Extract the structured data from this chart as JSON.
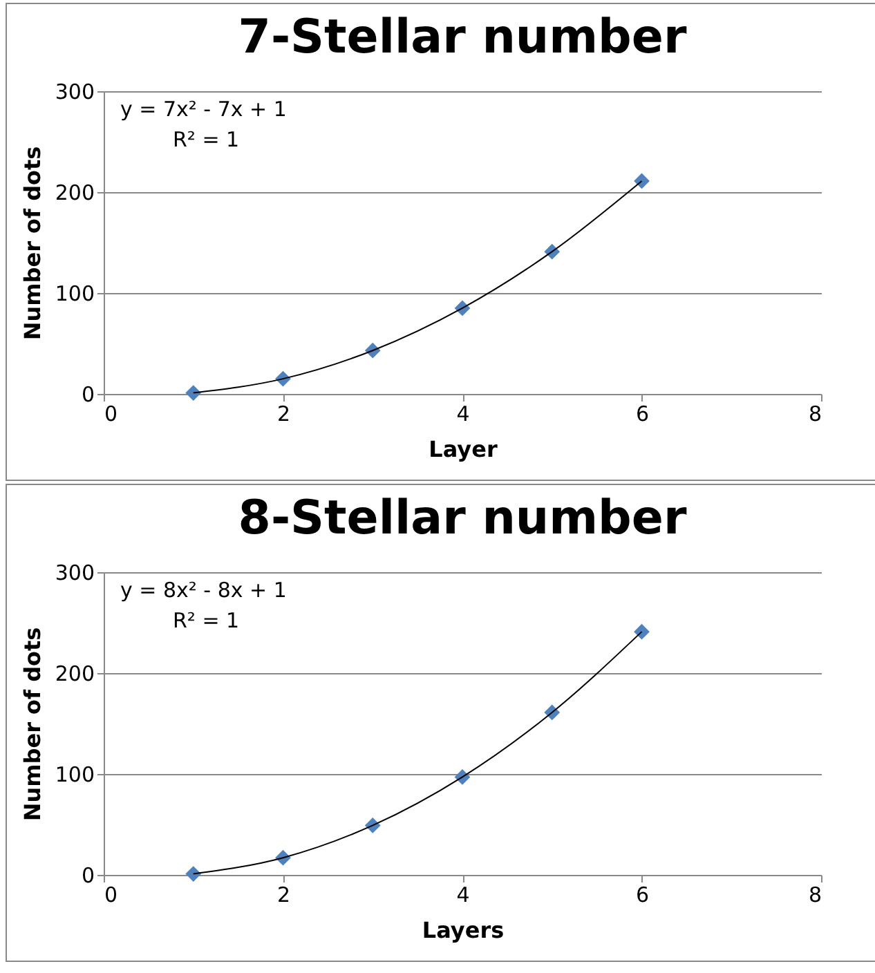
{
  "chart_data": [
    {
      "type": "scatter",
      "title": "7-Stellar number",
      "xlabel": "Layer",
      "ylabel": "Number of dots",
      "annotations": [
        "y = 7x² - 7x + 1",
        "R² = 1"
      ],
      "xlim": [
        0,
        8
      ],
      "xticks": [
        0,
        2,
        4,
        6,
        8
      ],
      "ylim": [
        0,
        300
      ],
      "yticks": [
        0,
        100,
        200,
        300
      ],
      "grid": "y",
      "series": [
        {
          "type": "scatter",
          "marker": "diamond",
          "color": "#4f81bd",
          "x": [
            1,
            2,
            3,
            4,
            5,
            6
          ],
          "values": [
            1,
            15,
            43,
            85,
            141,
            211
          ]
        },
        {
          "type": "line",
          "marker": "none",
          "color": "#000000",
          "x": [
            1,
            2,
            3,
            4,
            5,
            6
          ],
          "values": [
            1,
            15,
            43,
            85,
            141,
            211
          ]
        }
      ]
    },
    {
      "type": "scatter",
      "title": "8-Stellar number",
      "xlabel": "Layers",
      "ylabel": "Number of dots",
      "annotations": [
        "y = 8x² - 8x + 1",
        "R² = 1"
      ],
      "xlim": [
        0,
        8
      ],
      "xticks": [
        0,
        2,
        4,
        6,
        8
      ],
      "ylim": [
        0,
        300
      ],
      "yticks": [
        0,
        100,
        200,
        300
      ],
      "grid": "y",
      "series": [
        {
          "type": "scatter",
          "marker": "diamond",
          "color": "#4f81bd",
          "x": [
            1,
            2,
            3,
            4,
            5,
            6
          ],
          "values": [
            1,
            17,
            49,
            97,
            161,
            241
          ]
        },
        {
          "type": "line",
          "marker": "none",
          "color": "#000000",
          "x": [
            1,
            2,
            3,
            4,
            5,
            6
          ],
          "values": [
            1,
            17,
            49,
            97,
            161,
            241
          ]
        }
      ]
    }
  ]
}
